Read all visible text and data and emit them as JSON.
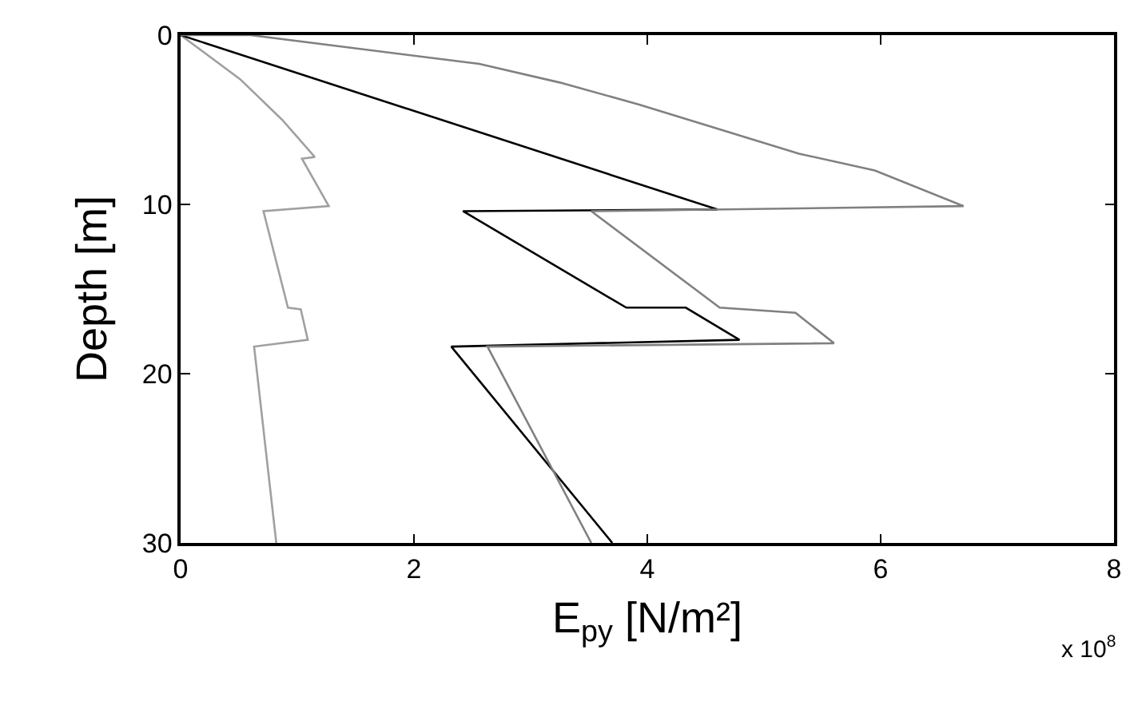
{
  "chart_data": {
    "type": "line",
    "xlabel": "E$_{py}$ [N/m²]",
    "ylabel": "Depth [m]",
    "annotations": [
      "x 10$^{8}$"
    ],
    "xlim": [
      0,
      8
    ],
    "xticks": [
      0,
      2,
      4,
      6,
      8
    ],
    "ylim": [
      30,
      0
    ],
    "yticks": [
      0,
      10,
      20,
      30
    ],
    "grid": false,
    "marker": "none",
    "line_style": "solid",
    "series": [
      {
        "color": "#a0a0a0",
        "x": [
          0,
          0.51,
          0.87,
          1.15,
          1.04,
          1.27,
          0.71,
          0.92,
          1.03,
          1.09,
          0.63,
          0.82
        ],
        "values": [
          0,
          2.6,
          5.0,
          7.2,
          7.3,
          10.1,
          10.4,
          16.1,
          16.2,
          18.0,
          18.4,
          30
        ]
      },
      {
        "color": "#000000",
        "x": [
          0,
          4.6,
          2.42,
          3.82,
          4.33,
          4.79,
          2.32,
          3.7
        ],
        "values": [
          0,
          10.3,
          10.4,
          16.1,
          16.1,
          18.0,
          18.4,
          30
        ]
      },
      {
        "color": "#808080",
        "x": [
          0,
          0.6,
          2.56,
          3.25,
          3.93,
          5.3,
          5.95,
          6.71,
          3.52,
          4.62,
          5.27,
          5.6,
          2.63,
          3.52
        ],
        "values": [
          0,
          0,
          1.7,
          2.8,
          4.1,
          7.0,
          8.0,
          10.1,
          10.4,
          16.1,
          16.4,
          18.2,
          18.4,
          30
        ]
      }
    ]
  }
}
